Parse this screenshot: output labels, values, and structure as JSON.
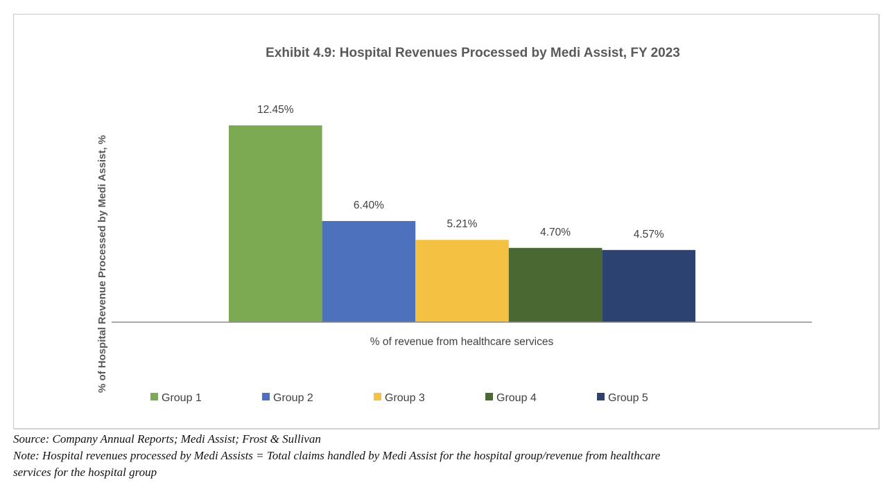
{
  "chart_data": {
    "type": "bar",
    "title": "Exhibit 4.9: Hospital Revenues Processed by Medi Assist, FY 2023",
    "xlabel": "% of revenue from healthcare services",
    "ylabel": "% of Hospital Revenue Processed by Medi Assist, %",
    "categories": [
      "% of revenue from healthcare services"
    ],
    "series": [
      {
        "name": "Group 1",
        "values": [
          12.45
        ],
        "label": "12.45%",
        "color": "#7BAA53"
      },
      {
        "name": "Group 2",
        "values": [
          6.4
        ],
        "label": "6.40%",
        "color": "#4E71BE"
      },
      {
        "name": "Group 3",
        "values": [
          5.21
        ],
        "label": "5.21%",
        "color": "#F4C142"
      },
      {
        "name": "Group 4",
        "values": [
          4.7
        ],
        "label": "4.70%",
        "color": "#4A6932"
      },
      {
        "name": "Group 5",
        "values": [
          4.57
        ],
        "label": "4.57%",
        "color": "#2C4372"
      }
    ],
    "ylim": [
      0,
      14
    ],
    "grid": false,
    "y_axis_visible": false,
    "legend_position": "bottom"
  },
  "footnotes": {
    "source": "Source: Company Annual Reports; Medi Assist; Frost & Sullivan",
    "note_line1": "Note: Hospital revenues processed by Medi Assists = Total claims handled by Medi Assist for the hospital group/revenue from healthcare",
    "note_line2": "services for the hospital group"
  }
}
